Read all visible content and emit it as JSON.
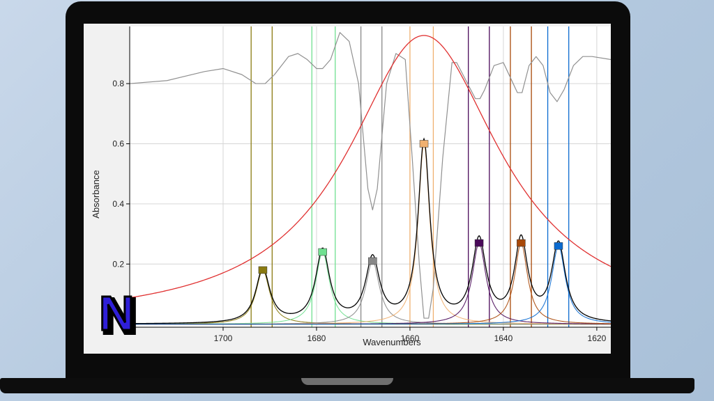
{
  "chart_data": {
    "type": "line",
    "title": "",
    "xlabel": "Wavenumbers",
    "ylabel": "Absorbance",
    "xlim": [
      1720,
      1617
    ],
    "ylim": [
      -0.01,
      0.99
    ],
    "x_reversed": true,
    "xticks": [
      1700,
      1680,
      1660,
      1640,
      1620
    ],
    "yticks": [
      0.2,
      0.4,
      0.6,
      0.8
    ],
    "grid": true,
    "baseline": 0.0,
    "broad_band": {
      "center": 1657,
      "height": 0.96,
      "width": 20,
      "color": "#e03030"
    },
    "peaks": [
      {
        "center": 1691.5,
        "height": 0.18,
        "width": 1.8,
        "color": "#8a7a10",
        "bounds": [
          1694,
          1689.5
        ]
      },
      {
        "center": 1678.7,
        "height": 0.24,
        "width": 1.8,
        "color": "#70e090",
        "bounds": [
          1681,
          1676
        ]
      },
      {
        "center": 1668.0,
        "height": 0.21,
        "width": 1.8,
        "color": "#888888",
        "bounds": [
          1670.5,
          1666
        ]
      },
      {
        "center": 1657.0,
        "height": 0.6,
        "width": 1.5,
        "color": "#f0b070",
        "bounds": [
          1660,
          1655
        ]
      },
      {
        "center": 1645.2,
        "height": 0.27,
        "width": 1.8,
        "color": "#4a0a5a",
        "bounds": [
          1647.5,
          1643
        ]
      },
      {
        "center": 1636.2,
        "height": 0.27,
        "width": 1.7,
        "color": "#a84808",
        "bounds": [
          1638.5,
          1634
        ]
      },
      {
        "center": 1628.2,
        "height": 0.26,
        "width": 1.8,
        "color": "#0a6ad0",
        "bounds": [
          1630.5,
          1626
        ]
      }
    ],
    "second_derivative": {
      "color": "#909090",
      "points": [
        [
          1720,
          0.8
        ],
        [
          1712,
          0.81
        ],
        [
          1704,
          0.84
        ],
        [
          1700,
          0.85
        ],
        [
          1696,
          0.83
        ],
        [
          1693,
          0.8
        ],
        [
          1691,
          0.8
        ],
        [
          1689,
          0.83
        ],
        [
          1686,
          0.89
        ],
        [
          1684,
          0.9
        ],
        [
          1682,
          0.88
        ],
        [
          1680,
          0.85
        ],
        [
          1678.7,
          0.85
        ],
        [
          1677,
          0.88
        ],
        [
          1675,
          0.97
        ],
        [
          1673,
          0.94
        ],
        [
          1671,
          0.8
        ],
        [
          1669,
          0.45
        ],
        [
          1668,
          0.38
        ],
        [
          1667,
          0.45
        ],
        [
          1665,
          0.8
        ],
        [
          1663,
          0.9
        ],
        [
          1661,
          0.88
        ],
        [
          1659.5,
          0.55
        ],
        [
          1658,
          0.2
        ],
        [
          1657,
          0.02
        ],
        [
          1656,
          0.02
        ],
        [
          1655,
          0.12
        ],
        [
          1653,
          0.55
        ],
        [
          1651,
          0.87
        ],
        [
          1650,
          0.87
        ],
        [
          1648,
          0.81
        ],
        [
          1646,
          0.75
        ],
        [
          1645,
          0.75
        ],
        [
          1644,
          0.78
        ],
        [
          1642,
          0.86
        ],
        [
          1640,
          0.87
        ],
        [
          1638.5,
          0.82
        ],
        [
          1637,
          0.77
        ],
        [
          1636,
          0.77
        ],
        [
          1634.5,
          0.86
        ],
        [
          1633,
          0.89
        ],
        [
          1631.5,
          0.86
        ],
        [
          1630,
          0.77
        ],
        [
          1628.5,
          0.74
        ],
        [
          1627,
          0.78
        ],
        [
          1625,
          0.86
        ],
        [
          1623,
          0.89
        ],
        [
          1621,
          0.89
        ],
        [
          1617,
          0.88
        ]
      ]
    }
  },
  "logo": {
    "letter": "N",
    "color": "#2f1fd8"
  }
}
